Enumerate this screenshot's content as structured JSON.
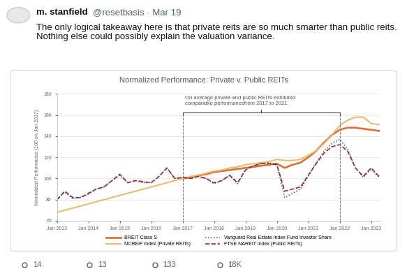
{
  "tweet": {
    "author": "m. stanfield",
    "byline": "@resetbasis · Mar 19",
    "text": "The only logical takeaway here is that private reits are so much smarter than public reits. Nothing else could possibly explain the valuation variance.",
    "stats": [
      14,
      13,
      133,
      {
        "value": 18000,
        "label": "18K"
      }
    ]
  },
  "chart_data": {
    "type": "line",
    "title": "Normalized Performance: Private v. Public REITs",
    "y_label": "Normalized Performance (100 on Jan 2017)",
    "annotation": {
      "text": "On average private and public REITs exhibited\ncomparable performancefrom 2017 to 2021",
      "x": [
        2017,
        2022
      ]
    },
    "x": [
      2013,
      2013.25,
      2013.5,
      2013.75,
      2014,
      2014.25,
      2014.5,
      2014.75,
      2015,
      2015.25,
      2015.5,
      2015.75,
      2016,
      2016.25,
      2016.5,
      2016.75,
      2017,
      2017.25,
      2017.5,
      2017.75,
      2018,
      2018.25,
      2018.5,
      2018.75,
      2019,
      2019.25,
      2019.5,
      2019.75,
      2020,
      2020.25,
      2020.5,
      2020.75,
      2021,
      2021.25,
      2021.5,
      2021.75,
      2022,
      2022.25,
      2022.5,
      2022.75,
      2023,
      2023.25
    ],
    "xlim": [
      2013,
      2023.3
    ],
    "xticks": [
      {
        "value": 2013,
        "label": "Jan 2013"
      },
      {
        "value": 2014,
        "label": "Jan 2014"
      },
      {
        "value": 2015,
        "label": "Jan 2015"
      },
      {
        "value": 2016,
        "label": "Jan 2016"
      },
      {
        "value": 2017,
        "label": "Jan 2017"
      },
      {
        "value": 2018,
        "label": "Jan 2018"
      },
      {
        "value": 2019,
        "label": "Jan 2019"
      },
      {
        "value": 2020,
        "label": "Jan 2020"
      },
      {
        "value": 2021,
        "label": "Jan 2021"
      },
      {
        "value": 2022,
        "label": "Jan 2022"
      },
      {
        "value": 2023,
        "label": "Jan 2023"
      }
    ],
    "ylim": [
      60,
      180
    ],
    "yticks": [
      60,
      80,
      100,
      120,
      140,
      160,
      180
    ],
    "grid": "y",
    "legend": "upper center",
    "series": [
      {
        "name": "BREIT Class S",
        "color": "#d9773a",
        "line_style": "solid",
        "values": [
          null,
          null,
          null,
          null,
          null,
          null,
          null,
          null,
          null,
          null,
          null,
          null,
          null,
          null,
          null,
          null,
          100,
          101,
          103,
          104,
          106,
          107,
          108,
          109,
          110,
          111,
          112,
          113,
          114,
          110,
          113,
          115,
          120,
          126,
          134,
          141,
          146,
          148,
          148,
          147,
          146,
          145
        ]
      },
      {
        "name": "NCREIF Index (Private REITs)",
        "color": "#f0b56a",
        "line_style": "solid",
        "values": [
          68,
          70,
          72,
          74,
          76,
          78,
          80,
          82,
          84,
          86,
          88,
          90,
          92,
          94,
          96,
          98,
          100,
          102,
          103,
          105,
          107,
          108,
          110,
          111,
          113,
          114,
          115,
          116,
          118,
          117,
          117,
          118,
          122,
          126,
          133,
          141,
          150,
          155,
          158,
          158,
          152,
          151
        ]
      },
      {
        "name": "Vanguard Real Estate Index Fund Investor Share",
        "color": "#4f4f63",
        "line_style": "dotted",
        "values": [
          80,
          87,
          81,
          82,
          85,
          90,
          92,
          98,
          103,
          96,
          98,
          96,
          96,
          102,
          110,
          100,
          101,
          100,
          102,
          100,
          95,
          98,
          103,
          95,
          108,
          112,
          114,
          115,
          113,
          82,
          86,
          90,
          102,
          115,
          126,
          133,
          137,
          128,
          110,
          101,
          109,
          101
        ]
      },
      {
        "name": "FTSE NAREIT Index (Public REITs)",
        "color": "#8b2e3a",
        "line_style": "dashed",
        "values": [
          80,
          88,
          82,
          82,
          86,
          90,
          92,
          98,
          104,
          96,
          98,
          97,
          96,
          102,
          110,
          100,
          101,
          100,
          102,
          100,
          96,
          98,
          103,
          96,
          108,
          112,
          114,
          114,
          113,
          88,
          90,
          92,
          103,
          114,
          124,
          130,
          132,
          126,
          110,
          102,
          110,
          102
        ]
      }
    ]
  }
}
